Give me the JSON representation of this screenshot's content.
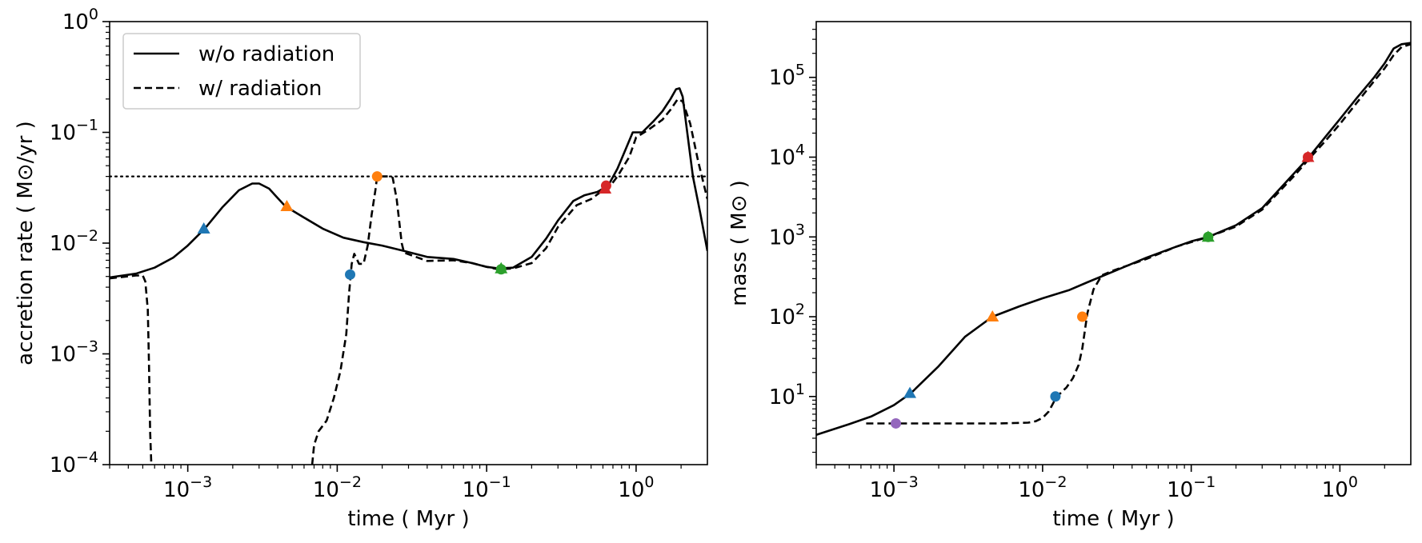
{
  "chart_data": [
    {
      "type": "line",
      "xlabel": "time ( Myr )",
      "ylabel": "accretion rate ( M⊙/yr )",
      "xscale": "log",
      "yscale": "log",
      "xlim": [
        0.0003,
        3
      ],
      "ylim": [
        0.0001,
        1
      ],
      "x_ticks": [
        {
          "value": 0.001,
          "base": "10",
          "exp": "−3"
        },
        {
          "value": 0.01,
          "base": "10",
          "exp": "−2"
        },
        {
          "value": 0.1,
          "base": "10",
          "exp": "−1"
        },
        {
          "value": 1,
          "base": "10",
          "exp": "0"
        }
      ],
      "y_ticks": [
        {
          "value": 0.0001,
          "base": "10",
          "exp": "−4"
        },
        {
          "value": 0.001,
          "base": "10",
          "exp": "−3"
        },
        {
          "value": 0.01,
          "base": "10",
          "exp": "−2"
        },
        {
          "value": 0.1,
          "base": "10",
          "exp": "−1"
        },
        {
          "value": 1,
          "base": "10",
          "exp": "0"
        }
      ],
      "legend": {
        "position": "top-left",
        "entries": [
          {
            "label": "w/o radiation",
            "style": "solid"
          },
          {
            "label": "w/ radiation",
            "style": "dashed"
          }
        ]
      },
      "series": [
        {
          "name": "w/o radiation",
          "style": "solid",
          "points": [
            [
              0.0003,
              0.0049
            ],
            [
              0.00045,
              0.0053
            ],
            [
              0.0006,
              0.006
            ],
            [
              0.0008,
              0.0074
            ],
            [
              0.001,
              0.0095
            ],
            [
              0.0013,
              0.0135
            ],
            [
              0.0017,
              0.021
            ],
            [
              0.0022,
              0.03
            ],
            [
              0.0027,
              0.0345
            ],
            [
              0.003,
              0.0345
            ],
            [
              0.0035,
              0.031
            ],
            [
              0.004,
              0.0255
            ],
            [
              0.0045,
              0.0215
            ],
            [
              0.006,
              0.017
            ],
            [
              0.008,
              0.0135
            ],
            [
              0.011,
              0.0112
            ],
            [
              0.015,
              0.0102
            ],
            [
              0.02,
              0.0095
            ],
            [
              0.03,
              0.0083
            ],
            [
              0.04,
              0.0075
            ],
            [
              0.06,
              0.0072
            ],
            [
              0.08,
              0.0066
            ],
            [
              0.1,
              0.0061
            ],
            [
              0.12,
              0.0059
            ],
            [
              0.15,
              0.006
            ],
            [
              0.2,
              0.0075
            ],
            [
              0.25,
              0.011
            ],
            [
              0.3,
              0.016
            ],
            [
              0.38,
              0.024
            ],
            [
              0.45,
              0.027
            ],
            [
              0.55,
              0.029
            ],
            [
              0.65,
              0.033
            ],
            [
              0.75,
              0.047
            ],
            [
              0.85,
              0.07
            ],
            [
              0.95,
              0.1
            ],
            [
              1.1,
              0.1
            ],
            [
              1.3,
              0.125
            ],
            [
              1.5,
              0.155
            ],
            [
              1.7,
              0.2
            ],
            [
              1.85,
              0.245
            ],
            [
              1.95,
              0.25
            ],
            [
              2.05,
              0.21
            ],
            [
              2.2,
              0.1
            ],
            [
              2.4,
              0.04
            ],
            [
              2.7,
              0.018
            ],
            [
              3.0,
              0.0085
            ]
          ]
        },
        {
          "name": "w/ radiation",
          "style": "dashed",
          "segments": [
            [
              [
                0.0003,
                0.0048
              ],
              [
                0.00045,
                0.0051
              ],
              [
                0.0005,
                0.0051
              ],
              [
                0.00052,
                0.0045
              ],
              [
                0.00054,
                0.0025
              ],
              [
                0.00055,
                0.0008
              ],
              [
                0.00056,
                0.0002
              ],
              [
                0.00057,
                0.0001
              ]
            ],
            [
              [
                0.0068,
                0.0001
              ],
              [
                0.007,
                0.00015
              ],
              [
                0.0075,
                0.0002
              ],
              [
                0.0085,
                0.00025
              ],
              [
                0.0095,
                0.0004
              ],
              [
                0.0105,
                0.0007
              ],
              [
                0.0115,
                0.0015
              ],
              [
                0.012,
                0.0035
              ],
              [
                0.0125,
                0.0065
              ],
              [
                0.013,
                0.008
              ],
              [
                0.014,
                0.0065
              ],
              [
                0.015,
                0.0065
              ],
              [
                0.016,
                0.0095
              ],
              [
                0.017,
                0.018
              ],
              [
                0.018,
                0.03
              ],
              [
                0.0185,
                0.04
              ],
              [
                0.02,
                0.04
              ],
              [
                0.022,
                0.04
              ],
              [
                0.0235,
                0.039
              ],
              [
                0.025,
                0.025
              ],
              [
                0.027,
                0.01
              ],
              [
                0.028,
                0.0082
              ],
              [
                0.04,
                0.0069
              ],
              [
                0.06,
                0.007
              ],
              [
                0.08,
                0.0066
              ],
              [
                0.1,
                0.0061
              ],
              [
                0.12,
                0.0058
              ],
              [
                0.15,
                0.0059
              ],
              [
                0.2,
                0.0066
              ],
              [
                0.25,
                0.009
              ],
              [
                0.3,
                0.014
              ],
              [
                0.4,
                0.022
              ],
              [
                0.5,
                0.025
              ],
              [
                0.6,
                0.03
              ],
              [
                0.65,
                0.031
              ],
              [
                0.75,
                0.04
              ],
              [
                0.9,
                0.06
              ],
              [
                1.0,
                0.09
              ],
              [
                1.2,
                0.105
              ],
              [
                1.5,
                0.13
              ],
              [
                1.7,
                0.16
              ],
              [
                1.9,
                0.2
              ],
              [
                2.05,
                0.19
              ],
              [
                2.3,
                0.12
              ],
              [
                2.6,
                0.055
              ],
              [
                3.0,
                0.025
              ]
            ]
          ]
        }
      ],
      "horizontal_line": {
        "y": 0.04,
        "style": "dotted"
      },
      "markers": [
        {
          "x": 0.00128,
          "y": 0.0135,
          "shape": "triangle",
          "color": "#1f77b4"
        },
        {
          "x": 0.0046,
          "y": 0.0215,
          "shape": "triangle",
          "color": "#ff7f0e"
        },
        {
          "x": 0.125,
          "y": 0.0059,
          "shape": "triangle",
          "color": "#2ca02c"
        },
        {
          "x": 0.62,
          "y": 0.031,
          "shape": "triangle",
          "color": "#d62728"
        },
        {
          "x": 0.0122,
          "y": 0.0052,
          "shape": "circle",
          "color": "#1f77b4"
        },
        {
          "x": 0.0185,
          "y": 0.04,
          "shape": "circle",
          "color": "#ff7f0e"
        },
        {
          "x": 0.125,
          "y": 0.0058,
          "shape": "circle",
          "color": "#2ca02c"
        },
        {
          "x": 0.63,
          "y": 0.033,
          "shape": "circle",
          "color": "#d62728"
        }
      ]
    },
    {
      "type": "line",
      "xlabel": "time ( Myr )",
      "ylabel": "mass ( M⊙ )",
      "xscale": "log",
      "yscale": "log",
      "xlim": [
        0.0003,
        3
      ],
      "ylim": [
        1.4,
        500000
      ],
      "x_ticks": [
        {
          "value": 0.001,
          "base": "10",
          "exp": "−3"
        },
        {
          "value": 0.01,
          "base": "10",
          "exp": "−2"
        },
        {
          "value": 0.1,
          "base": "10",
          "exp": "−1"
        },
        {
          "value": 1,
          "base": "10",
          "exp": "0"
        }
      ],
      "y_ticks": [
        {
          "value": 10,
          "base": "10",
          "exp": "1"
        },
        {
          "value": 100,
          "base": "10",
          "exp": "2"
        },
        {
          "value": 1000,
          "base": "10",
          "exp": "3"
        },
        {
          "value": 10000,
          "base": "10",
          "exp": "4"
        },
        {
          "value": 100000,
          "base": "10",
          "exp": "5"
        }
      ],
      "series": [
        {
          "name": "w/o radiation",
          "style": "solid",
          "points": [
            [
              0.0003,
              3.3
            ],
            [
              0.0005,
              4.5
            ],
            [
              0.0007,
              5.6
            ],
            [
              0.001,
              7.8
            ],
            [
              0.0013,
              11
            ],
            [
              0.002,
              24
            ],
            [
              0.003,
              56
            ],
            [
              0.0046,
              100
            ],
            [
              0.007,
              135
            ],
            [
              0.01,
              170
            ],
            [
              0.015,
              215
            ],
            [
              0.02,
              270
            ],
            [
              0.03,
              370
            ],
            [
              0.05,
              550
            ],
            [
              0.08,
              760
            ],
            [
              0.1,
              880
            ],
            [
              0.13,
              1000
            ],
            [
              0.2,
              1400
            ],
            [
              0.3,
              2300
            ],
            [
              0.5,
              6500
            ],
            [
              0.62,
              10000
            ],
            [
              0.8,
              18000
            ],
            [
              1.0,
              30000
            ],
            [
              1.3,
              55000
            ],
            [
              1.7,
              100000
            ],
            [
              2.0,
              150000
            ],
            [
              2.3,
              230000
            ],
            [
              2.6,
              260000
            ],
            [
              3.0,
              270000
            ]
          ]
        },
        {
          "name": "w/ radiation",
          "style": "dashed",
          "points": [
            [
              0.00065,
              4.6
            ],
            [
              0.001,
              4.6
            ],
            [
              0.002,
              4.6
            ],
            [
              0.005,
              4.6
            ],
            [
              0.008,
              4.7
            ],
            [
              0.009,
              4.9
            ],
            [
              0.01,
              5.4
            ],
            [
              0.011,
              6.5
            ],
            [
              0.012,
              8.8
            ],
            [
              0.0125,
              10
            ],
            [
              0.0145,
              13
            ],
            [
              0.016,
              17
            ],
            [
              0.0175,
              25
            ],
            [
              0.0185,
              40
            ],
            [
              0.02,
              110
            ],
            [
              0.022,
              220
            ],
            [
              0.025,
              330
            ],
            [
              0.03,
              380
            ],
            [
              0.05,
              530
            ],
            [
              0.08,
              760
            ],
            [
              0.1,
              860
            ],
            [
              0.13,
              1000
            ],
            [
              0.2,
              1350
            ],
            [
              0.3,
              2200
            ],
            [
              0.5,
              6000
            ],
            [
              0.62,
              9500
            ],
            [
              0.8,
              16000
            ],
            [
              1.0,
              26000
            ],
            [
              1.3,
              48000
            ],
            [
              1.7,
              90000
            ],
            [
              2.0,
              130000
            ],
            [
              2.3,
              190000
            ],
            [
              2.6,
              240000
            ],
            [
              3.0,
              260000
            ]
          ]
        }
      ],
      "markers": [
        {
          "x": 0.00128,
          "y": 11,
          "shape": "triangle",
          "color": "#1f77b4"
        },
        {
          "x": 0.0046,
          "y": 100,
          "shape": "triangle",
          "color": "#ff7f0e"
        },
        {
          "x": 0.0122,
          "y": 10,
          "shape": "circle",
          "color": "#1f77b4"
        },
        {
          "x": 0.0185,
          "y": 100,
          "shape": "circle",
          "color": "#ff7f0e"
        },
        {
          "x": 0.00103,
          "y": 4.6,
          "shape": "circle",
          "color": "#9467bd"
        },
        {
          "x": 0.13,
          "y": 1000,
          "shape": "triangle",
          "color": "#2ca02c"
        },
        {
          "x": 0.13,
          "y": 1000,
          "shape": "circle",
          "color": "#2ca02c"
        },
        {
          "x": 0.61,
          "y": 10000,
          "shape": "triangle",
          "color": "#d62728"
        },
        {
          "x": 0.61,
          "y": 10000,
          "shape": "circle",
          "color": "#d62728"
        }
      ]
    }
  ]
}
